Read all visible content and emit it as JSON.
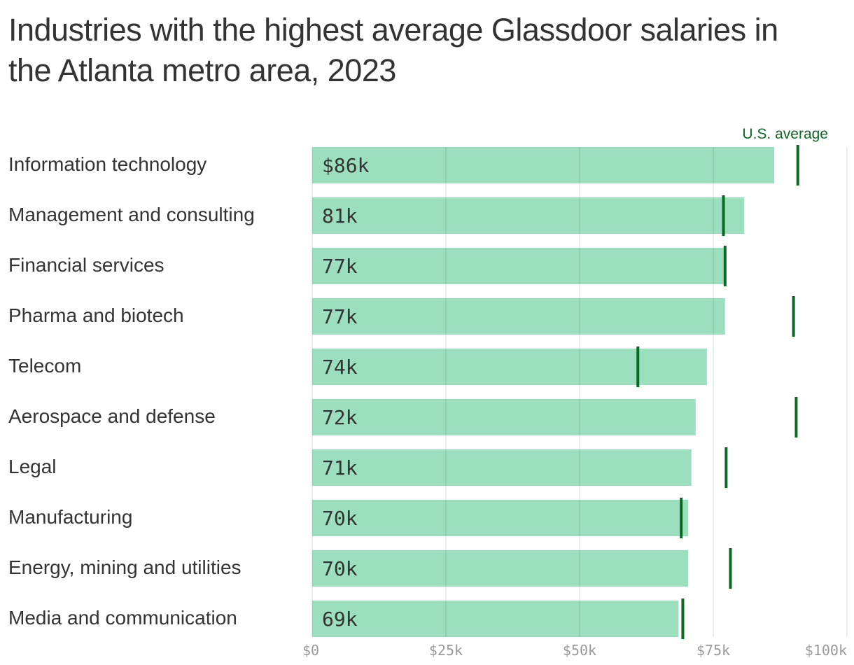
{
  "chart_data": {
    "type": "bar",
    "orientation": "horizontal",
    "title": "Industries with the highest average Glassdoor salaries in the Atlanta metro area, 2023",
    "categories": [
      "Information technology",
      "Management and consulting",
      "Financial services",
      "Pharma and biotech",
      "Telecom",
      "Aerospace and defense",
      "Legal",
      "Manufacturing",
      "Energy, mining and utilities",
      "Media and communication"
    ],
    "series": [
      {
        "name": "Atlanta",
        "values": [
          86.4,
          80.8,
          77.2,
          77.2,
          73.8,
          71.7,
          70.9,
          70.3,
          70.3,
          68.5
        ]
      },
      {
        "name": "U.S. average",
        "values": [
          90.8,
          76.9,
          77.2,
          90.0,
          60.9,
          90.5,
          77.4,
          69.0,
          78.2,
          69.3
        ]
      }
    ],
    "data_labels": [
      "$86k",
      "81k",
      "77k",
      "77k",
      "74k",
      "72k",
      "71k",
      "70k",
      "70k",
      "69k"
    ],
    "xlim": [
      0,
      100
    ],
    "x_ticks": [
      0,
      25,
      50,
      75,
      100
    ],
    "x_tick_labels": [
      "$0",
      "$25k",
      "$50k",
      "$75k",
      "$100k"
    ],
    "grid": true,
    "legend": "top-right",
    "colors": {
      "bar": "#9bdfbf",
      "marker": "#0a6a22",
      "grid": "#e0e0e0"
    }
  }
}
